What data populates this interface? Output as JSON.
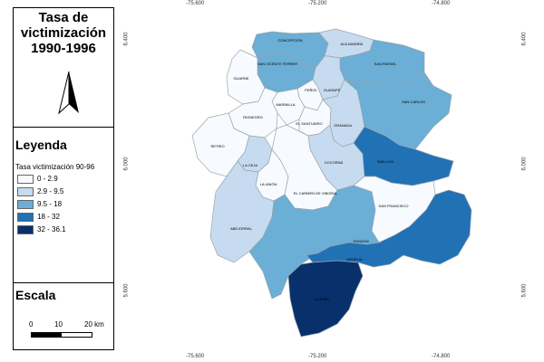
{
  "title": "Tasa de victimización 1990-1996",
  "title_lines": [
    "Tasa de",
    "victimización",
    "1990-1996"
  ],
  "legend": {
    "heading": "Leyenda",
    "subtitle": "Tasa victimización 90-96",
    "classes": [
      {
        "label": "0 - 2.9",
        "color": "#f7fbff"
      },
      {
        "label": "2.9 - 9.5",
        "color": "#c6dbef"
      },
      {
        "label": "9.5 - 18",
        "color": "#6baed6"
      },
      {
        "label": "18 - 32",
        "color": "#2171b5"
      },
      {
        "label": "32 - 36.1",
        "color": "#08306b"
      }
    ]
  },
  "scale": {
    "heading": "Escala",
    "labels": [
      "0",
      "10",
      "20 km"
    ]
  },
  "north_arrow_icon": "north-arrow-icon",
  "coords": {
    "top": [
      "-75.600",
      "-75.200",
      "-74.800"
    ],
    "bottom": [
      "-75.600",
      "-75.200",
      "-74.800"
    ],
    "left": [
      "6.400",
      "6.000",
      "5.600"
    ],
    "right": [
      "6.400",
      "6.000",
      "5.600"
    ]
  },
  "municipalities": [
    {
      "name": "CONCEPCIÓN",
      "class": 2
    },
    {
      "name": "ALEJANDRÍA",
      "class": 1
    },
    {
      "name": "SAN VICENTE FERRER",
      "class": 2
    },
    {
      "name": "SAN RAFAEL",
      "class": 2
    },
    {
      "name": "GUARNE",
      "class": 0
    },
    {
      "name": "PEÑOL",
      "class": 0
    },
    {
      "name": "GUATAPÉ",
      "class": 1
    },
    {
      "name": "MARINILLA",
      "class": 0
    },
    {
      "name": "RIONEGRO",
      "class": 0
    },
    {
      "name": "EL SANTUARIO",
      "class": 0
    },
    {
      "name": "GRANADA",
      "class": 1
    },
    {
      "name": "SAN CARLOS",
      "class": 2
    },
    {
      "name": "RETIRO",
      "class": 0
    },
    {
      "name": "LA CEJA",
      "class": 1
    },
    {
      "name": "COCORNÁ",
      "class": 1
    },
    {
      "name": "SAN LUIS",
      "class": 3
    },
    {
      "name": "LA UNIÓN",
      "class": 0
    },
    {
      "name": "EL CARMEN DE VIBORAL",
      "class": 0
    },
    {
      "name": "SAN FRANCISCO",
      "class": 0
    },
    {
      "name": "ABEJORRAL",
      "class": 1
    },
    {
      "name": "SONSÓN",
      "class": 2
    },
    {
      "name": "ARGELIA",
      "class": 3
    },
    {
      "name": "NARIÑO",
      "class": 4
    }
  ]
}
